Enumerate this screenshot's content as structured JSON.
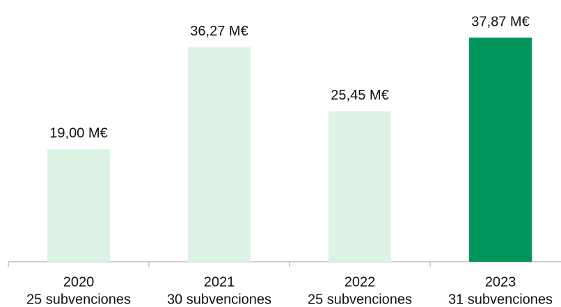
{
  "chart_data": {
    "type": "bar",
    "categories": [
      [
        "2020",
        "25 subvenciones"
      ],
      [
        "2021",
        "30 subvenciones"
      ],
      [
        "2022",
        "25 subvenciones"
      ],
      [
        "2023",
        "31 subvenciones"
      ]
    ],
    "values": [
      19.0,
      36.27,
      25.45,
      37.87
    ],
    "value_labels": [
      "19,00 M€",
      "36,27 M€",
      "25,45 M€",
      "37,87 M€"
    ],
    "colors": [
      "#dcf2e5",
      "#dcf2e5",
      "#dcf2e5",
      "#00955a"
    ]
  }
}
